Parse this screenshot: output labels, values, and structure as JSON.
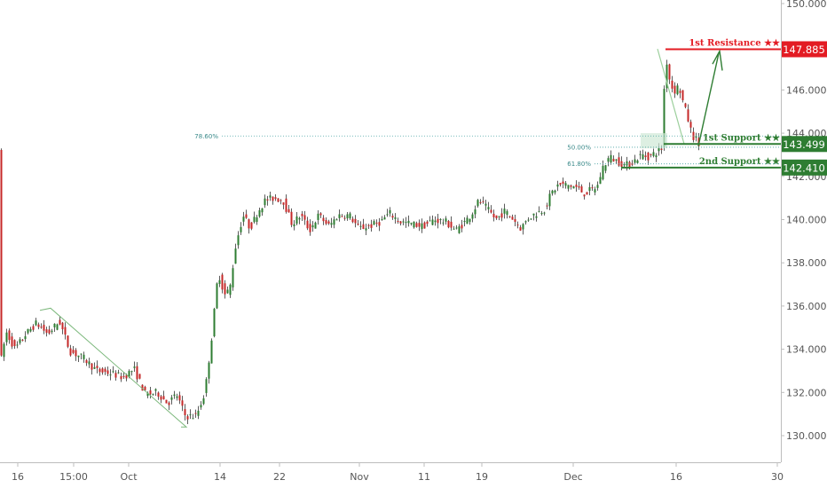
{
  "chart_data": {
    "type": "candlestick",
    "y_axis": {
      "position": "right",
      "range": [
        128.8,
        150.2
      ],
      "ticks": [
        "130.000",
        "132.000",
        "134.000",
        "136.000",
        "138.000",
        "140.000",
        "142.000",
        "144.000",
        "146.000",
        "148.000",
        "150.000"
      ]
    },
    "x_axis": {
      "ticks": [
        "16",
        "15:00",
        "Oct",
        "14",
        "22",
        "Nov",
        "11",
        "19",
        "Dec",
        "16",
        "30"
      ]
    },
    "grid": false,
    "levels": [
      {
        "name": "1st Resistance ★★",
        "price": "147.885",
        "color": "#e31b23"
      },
      {
        "name": "1st Support ★★",
        "price": "143.499",
        "color": "#2e7d32"
      },
      {
        "name": "2nd Support ★★",
        "price": "142.410",
        "color": "#2e7d32"
      }
    ],
    "fib_labels": [
      "78.60%",
      "50.00%",
      "61.80%"
    ],
    "fib_levels": [
      143.87,
      143.35,
      142.58
    ],
    "series_path": [
      [
        0,
        133.0
      ],
      [
        8,
        134.8
      ],
      [
        18,
        134.0
      ],
      [
        30,
        134.7
      ],
      [
        42,
        135.2
      ],
      [
        55,
        134.7
      ],
      [
        68,
        135.3
      ],
      [
        80,
        133.9
      ],
      [
        95,
        133.6
      ],
      [
        110,
        133.0
      ],
      [
        125,
        132.9
      ],
      [
        140,
        132.7
      ],
      [
        152,
        133.1
      ],
      [
        165,
        131.9
      ],
      [
        178,
        132.0
      ],
      [
        190,
        131.5
      ],
      [
        200,
        131.9
      ],
      [
        210,
        130.9
      ],
      [
        222,
        130.9
      ],
      [
        232,
        132.0
      ],
      [
        240,
        134.7
      ],
      [
        247,
        137.6
      ],
      [
        254,
        136.5
      ],
      [
        260,
        136.8
      ],
      [
        267,
        138.9
      ],
      [
        275,
        140.2
      ],
      [
        283,
        139.6
      ],
      [
        292,
        140.4
      ],
      [
        300,
        140.9
      ],
      [
        310,
        141.0
      ],
      [
        320,
        140.9
      ],
      [
        330,
        139.8
      ],
      [
        340,
        140.2
      ],
      [
        350,
        139.5
      ],
      [
        360,
        140.2
      ],
      [
        372,
        139.7
      ],
      [
        382,
        140.2
      ],
      [
        395,
        140.2
      ],
      [
        405,
        139.6
      ],
      [
        418,
        139.7
      ],
      [
        430,
        139.9
      ],
      [
        440,
        140.3
      ],
      [
        452,
        139.9
      ],
      [
        465,
        139.8
      ],
      [
        478,
        139.7
      ],
      [
        490,
        140.0
      ],
      [
        503,
        139.9
      ],
      [
        515,
        139.5
      ],
      [
        525,
        139.9
      ],
      [
        533,
        140.3
      ],
      [
        541,
        140.9
      ],
      [
        550,
        140.5
      ],
      [
        560,
        140.0
      ],
      [
        570,
        140.4
      ],
      [
        580,
        140.0
      ],
      [
        588,
        139.6
      ],
      [
        597,
        140.1
      ],
      [
        606,
        140.3
      ],
      [
        615,
        140.5
      ],
      [
        622,
        141.2
      ],
      [
        630,
        141.6
      ],
      [
        640,
        141.6
      ],
      [
        650,
        141.5
      ],
      [
        660,
        141.2
      ],
      [
        668,
        141.4
      ],
      [
        674,
        141.5
      ],
      [
        680,
        142.4
      ],
      [
        688,
        142.9
      ],
      [
        697,
        142.7
      ],
      [
        706,
        142.5
      ],
      [
        715,
        142.7
      ],
      [
        724,
        143.0
      ],
      [
        732,
        142.9
      ],
      [
        740,
        143.1
      ],
      [
        747,
        143.3
      ],
      [
        751,
        147.7
      ],
      [
        755,
        146.6
      ],
      [
        760,
        145.9
      ],
      [
        766,
        146.2
      ],
      [
        771,
        145.4
      ],
      [
        776,
        144.7
      ],
      [
        781,
        143.9
      ],
      [
        786,
        143.7
      ],
      [
        789,
        143.4
      ]
    ]
  }
}
